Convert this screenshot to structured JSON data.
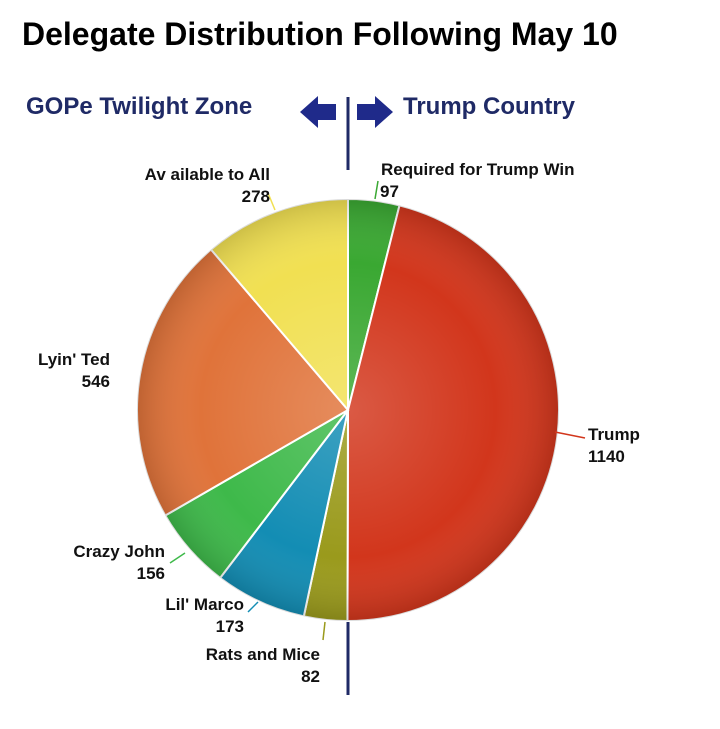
{
  "title": "Delegate Distribution Following May 10",
  "header": {
    "left_zone": "GOPe Twilight Zone",
    "right_zone": "Trump Country",
    "left_arrow_icon": "arrow-left-icon",
    "right_arrow_icon": "arrow-right-icon",
    "arrow_color": "#1f2a8a",
    "divider_color": "#1f2a66"
  },
  "chart_data": {
    "type": "pie",
    "slices": [
      {
        "label": "Required for Trump Win",
        "value": 97,
        "color": "#3aa832"
      },
      {
        "label": "Trump",
        "value": 1140,
        "color": "#d2361c"
      },
      {
        "label": "Rats and Mice",
        "value": 82,
        "color": "#9a9a1c"
      },
      {
        "label": "Lil' Marco",
        "value": 173,
        "color": "#138db4"
      },
      {
        "label": "Crazy John",
        "value": 156,
        "color": "#3eb94a"
      },
      {
        "label": "Lyin' Ted",
        "value": 546,
        "color": "#e0733a"
      },
      {
        "label": "Av ailable to All",
        "value": 278,
        "color": "#f1e052"
      }
    ],
    "start_angle_deg": 0,
    "direction": "clockwise"
  }
}
